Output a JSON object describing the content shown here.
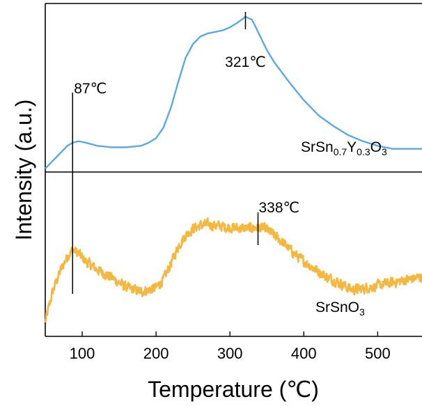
{
  "chart_data": {
    "type": "line",
    "xlabel": "Temperature (℃)",
    "ylabel": "Intensity (a.u.)",
    "xlim": [
      50,
      560
    ],
    "xticks": [
      "100",
      "200",
      "300",
      "400",
      "500"
    ],
    "y_ticks_shown": false,
    "stacked_panels": true,
    "series": [
      {
        "name": "SrSn0.7Y0.3O3",
        "label_parts": [
          "SrSn",
          "0.7",
          "Y",
          "0.3",
          "O",
          "3"
        ],
        "color": "#5aa9e6",
        "noisy": false,
        "x": [
          50,
          60,
          70,
          80,
          87,
          95,
          105,
          120,
          140,
          160,
          180,
          190,
          200,
          210,
          220,
          230,
          240,
          250,
          260,
          270,
          280,
          290,
          300,
          310,
          321,
          330,
          340,
          350,
          360,
          380,
          400,
          420,
          440,
          460,
          480,
          500,
          520,
          540,
          560
        ],
        "y": [
          0.0,
          0.05,
          0.1,
          0.15,
          0.17,
          0.18,
          0.17,
          0.15,
          0.14,
          0.14,
          0.15,
          0.17,
          0.2,
          0.27,
          0.4,
          0.57,
          0.73,
          0.82,
          0.87,
          0.89,
          0.9,
          0.91,
          0.93,
          0.96,
          1.0,
          0.98,
          0.88,
          0.78,
          0.7,
          0.57,
          0.45,
          0.35,
          0.28,
          0.22,
          0.18,
          0.15,
          0.13,
          0.13,
          0.13
        ]
      },
      {
        "name": "SrSnO3",
        "label_parts": [
          "SrSnO",
          "3"
        ],
        "color": "#f4b740",
        "noisy": true,
        "x": [
          50,
          60,
          70,
          80,
          87,
          95,
          105,
          120,
          140,
          160,
          180,
          200,
          210,
          220,
          230,
          240,
          250,
          260,
          270,
          280,
          290,
          300,
          320,
          338,
          350,
          370,
          390,
          410,
          430,
          450,
          465,
          480,
          500,
          520,
          540,
          560
        ],
        "y": [
          0.0,
          0.3,
          0.5,
          0.65,
          0.72,
          0.68,
          0.6,
          0.52,
          0.44,
          0.34,
          0.3,
          0.34,
          0.42,
          0.58,
          0.75,
          0.86,
          0.93,
          0.96,
          0.97,
          0.96,
          0.95,
          0.94,
          0.93,
          0.94,
          0.92,
          0.8,
          0.66,
          0.55,
          0.45,
          0.38,
          0.32,
          0.33,
          0.36,
          0.39,
          0.42,
          0.45
        ]
      }
    ],
    "annotations": [
      {
        "text": "87℃",
        "x": 87
      },
      {
        "text": "321℃",
        "x": 321
      },
      {
        "text": "338℃",
        "x": 338
      }
    ]
  }
}
